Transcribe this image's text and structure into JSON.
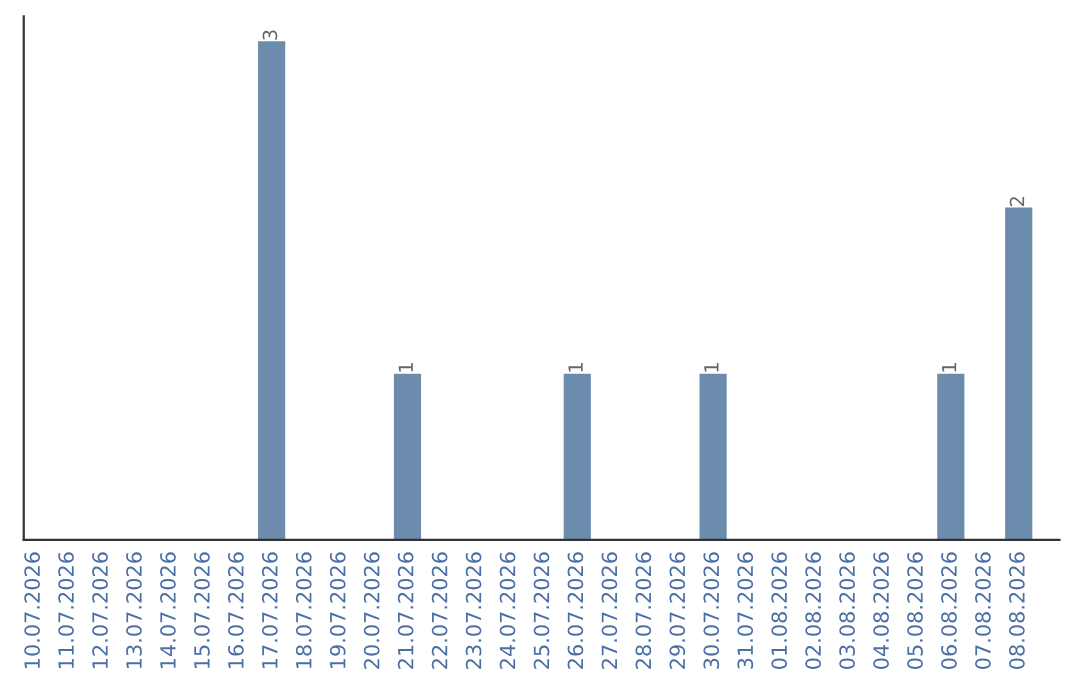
{
  "chart_data": {
    "type": "bar",
    "categories": [
      "10.07.2026",
      "11.07.2026",
      "12.07.2026",
      "13.07.2026",
      "14.07.2026",
      "15.07.2026",
      "16.07.2026",
      "17.07.2026",
      "18.07.2026",
      "19.07.2026",
      "20.07.2026",
      "21.07.2026",
      "22.07.2026",
      "23.07.2026",
      "24.07.2026",
      "25.07.2026",
      "26.07.2026",
      "27.07.2026",
      "28.07.2026",
      "29.07.2026",
      "30.07.2026",
      "31.07.2026",
      "01.08.2026",
      "02.08.2026",
      "03.08.2026",
      "04.08.2026",
      "05.08.2026",
      "06.08.2026",
      "07.08.2026",
      "08.08.2026"
    ],
    "values": [
      0,
      0,
      0,
      0,
      0,
      0,
      0,
      3,
      0,
      0,
      0,
      1,
      0,
      0,
      0,
      0,
      1,
      0,
      0,
      0,
      1,
      0,
      0,
      0,
      0,
      0,
      0,
      1,
      0,
      2
    ],
    "value_labels": [
      null,
      null,
      null,
      null,
      null,
      null,
      null,
      "3",
      null,
      null,
      null,
      "1",
      null,
      null,
      null,
      null,
      "1",
      null,
      null,
      null,
      "1",
      null,
      null,
      null,
      null,
      null,
      null,
      "1",
      null,
      "2"
    ],
    "color": "#6b8cad",
    "ylim": [
      0,
      3.15
    ],
    "tick_labels": "x",
    "grid": false,
    "legend": false
  }
}
